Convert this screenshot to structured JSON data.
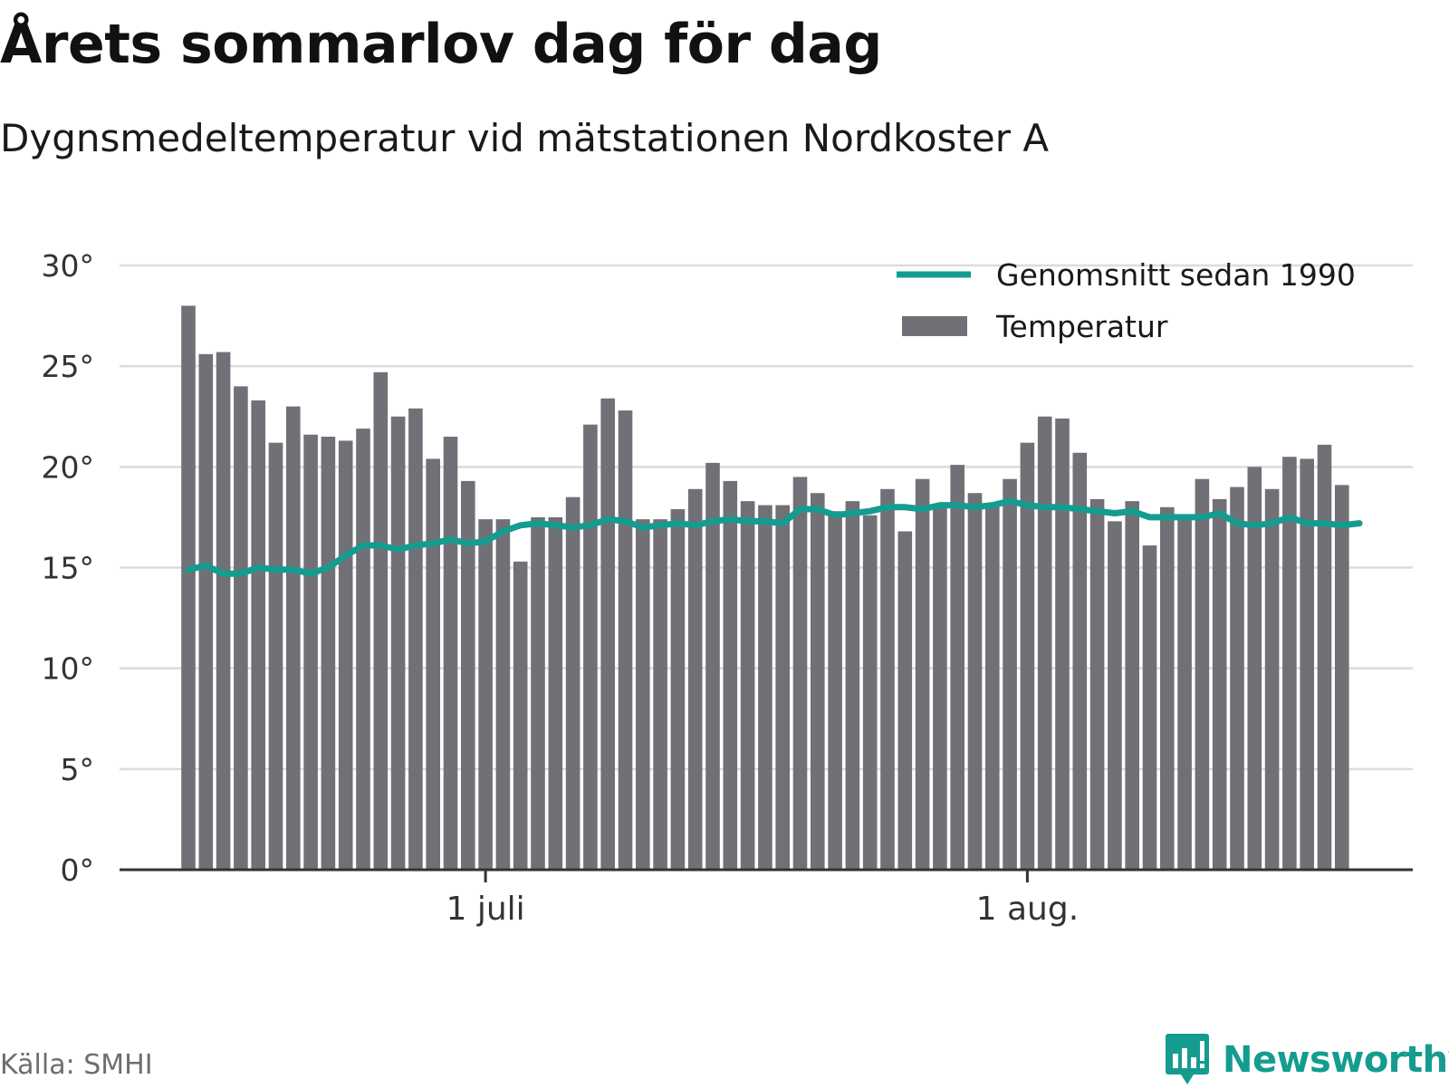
{
  "title": "Årets sommarlov dag för dag",
  "subtitle": "Dygnsmedeltemperatur vid mätstationen Nordkoster A",
  "source": "Källa: SMHI",
  "brand": {
    "name": "Newsworthy",
    "icon": "newsworthy-logo-icon",
    "color": "#149c8f"
  },
  "colors": {
    "bar": "#717076",
    "line": "#149c8f",
    "grid": "#dcdcdc",
    "axis": "#333333"
  },
  "chart_data": {
    "type": "bar",
    "x_start": "2023-06-14",
    "x_end": "2023-08-20",
    "ylim": [
      0,
      30
    ],
    "y_ticks": [
      0,
      5,
      10,
      15,
      20,
      25,
      30
    ],
    "y_tick_labels": [
      "0°",
      "5°",
      "10°",
      "15°",
      "20°",
      "25°",
      "30°"
    ],
    "x_ticks": [
      {
        "date": "2023-07-01",
        "label": "1 juli"
      },
      {
        "date": "2023-08-01",
        "label": "1 aug."
      }
    ],
    "grid": true,
    "legend_position": "top-right",
    "series": [
      {
        "name": "Temperatur",
        "type": "bar",
        "values": [
          28.0,
          25.6,
          25.7,
          24.0,
          23.3,
          21.2,
          23.0,
          21.6,
          21.5,
          21.3,
          21.9,
          24.7,
          22.5,
          22.9,
          20.4,
          21.5,
          19.3,
          17.4,
          17.4,
          15.3,
          17.5,
          17.5,
          18.5,
          22.1,
          23.4,
          22.8,
          17.4,
          17.4,
          17.9,
          18.9,
          20.2,
          19.3,
          18.3,
          18.1,
          18.1,
          19.5,
          18.7,
          17.8,
          18.3,
          17.6,
          18.9,
          16.8,
          19.4,
          18.1,
          20.1,
          18.7,
          18.2,
          19.4,
          21.2,
          22.5,
          22.4,
          20.7,
          18.4,
          17.3,
          18.3,
          16.1,
          18.0,
          17.5,
          19.4,
          18.4,
          19.0,
          20.0,
          18.9,
          20.5,
          20.4,
          21.1,
          19.1
        ]
      },
      {
        "name": "Genomsnitt sedan 1990",
        "type": "line",
        "values": [
          14.9,
          15.1,
          14.7,
          14.7,
          15.0,
          14.9,
          14.9,
          14.7,
          15.0,
          15.6,
          16.1,
          16.1,
          15.9,
          16.1,
          16.2,
          16.4,
          16.2,
          16.3,
          16.8,
          17.1,
          17.2,
          17.1,
          17.0,
          17.1,
          17.4,
          17.3,
          17.0,
          17.1,
          17.2,
          17.1,
          17.3,
          17.4,
          17.3,
          17.3,
          17.2,
          17.9,
          17.9,
          17.6,
          17.7,
          17.8,
          18.0,
          18.0,
          17.9,
          18.1,
          18.1,
          18.0,
          18.1,
          18.3,
          18.1,
          18.0,
          18.0,
          17.9,
          17.8,
          17.7,
          17.8,
          17.5,
          17.5,
          17.5,
          17.5,
          17.7,
          17.2,
          17.1,
          17.2,
          17.5,
          17.2,
          17.2,
          17.1,
          17.2
        ]
      }
    ]
  }
}
